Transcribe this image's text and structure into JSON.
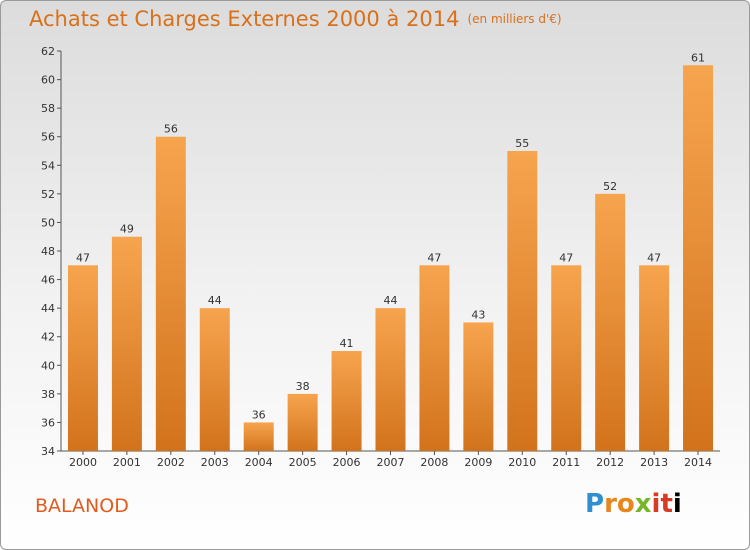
{
  "header": {
    "title": "Achats et Charges Externes 2000 à 2014",
    "unit": "(en milliers d'€)"
  },
  "commune": "BALANOD",
  "logo": {
    "letters": [
      "P",
      "r",
      "o",
      "x",
      "i",
      "t",
      "i"
    ]
  },
  "colors": {
    "bar_light": "#f7a44f",
    "bar_dark": "#d2731c",
    "title": "#d9701a",
    "commune": "#e25b1e"
  },
  "chart_data": {
    "type": "bar",
    "title": "Achats et Charges Externes 2000 à 2014",
    "subtitle": "(en milliers d'€)",
    "categories": [
      "2000",
      "2001",
      "2002",
      "2003",
      "2004",
      "2005",
      "2006",
      "2007",
      "2008",
      "2009",
      "2010",
      "2011",
      "2012",
      "2013",
      "2014"
    ],
    "values": [
      47,
      49,
      56,
      44,
      36,
      38,
      41,
      44,
      47,
      43,
      55,
      47,
      52,
      47,
      61
    ],
    "ylim": [
      34,
      62
    ],
    "yticks": [
      34,
      36,
      38,
      40,
      42,
      44,
      46,
      48,
      50,
      52,
      54,
      56,
      58,
      60,
      62
    ],
    "grid": false,
    "xlabel": "",
    "ylabel": ""
  }
}
